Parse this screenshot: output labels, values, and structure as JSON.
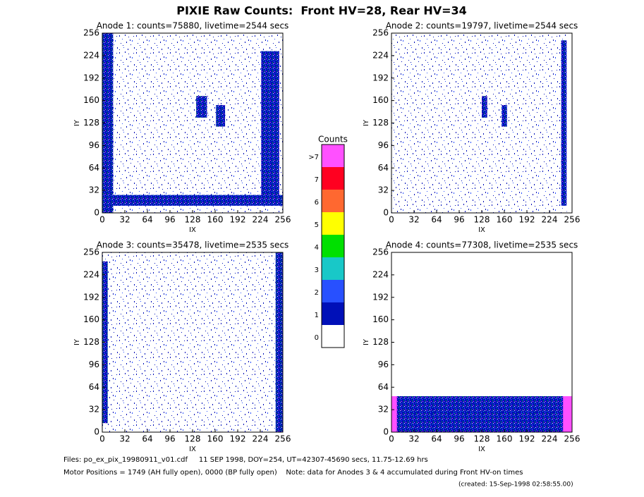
{
  "title": "PIXIE Raw Counts:  Front HV=28, Rear HV=34",
  "chart_data": [
    {
      "type": "heatmap",
      "title": "Anode 1: counts=75880, livetime=2544 secs",
      "xlabel": "IX",
      "ylabel": "IY",
      "xlim": [
        0,
        256
      ],
      "ylim": [
        0,
        256
      ],
      "xticks": [
        0,
        32,
        64,
        96,
        128,
        160,
        192,
        224,
        256
      ],
      "yticks": [
        0,
        32,
        64,
        96,
        128,
        160,
        192,
        224,
        256
      ]
    },
    {
      "type": "heatmap",
      "title": "Anode 2: counts=19797, livetime=2544 secs",
      "xlabel": "IX",
      "ylabel": "IY",
      "xlim": [
        0,
        256
      ],
      "ylim": [
        0,
        256
      ],
      "xticks": [
        0,
        32,
        64,
        96,
        128,
        160,
        192,
        224,
        256
      ],
      "yticks": [
        0,
        32,
        64,
        96,
        128,
        160,
        192,
        224,
        256
      ]
    },
    {
      "type": "heatmap",
      "title": "Anode 3: counts=35478, livetime=2535 secs",
      "xlabel": "IX",
      "ylabel": "IY",
      "xlim": [
        0,
        256
      ],
      "ylim": [
        0,
        256
      ],
      "xticks": [
        0,
        32,
        64,
        96,
        128,
        160,
        192,
        224,
        256
      ],
      "yticks": [
        0,
        32,
        64,
        96,
        128,
        160,
        192,
        224,
        256
      ]
    },
    {
      "type": "heatmap",
      "title": "Anode 4: counts=77308, livetime=2535 secs",
      "xlabel": "IX",
      "ylabel": "IY",
      "xlim": [
        0,
        256
      ],
      "ylim": [
        0,
        256
      ],
      "xticks": [
        0,
        32,
        64,
        96,
        128,
        160,
        192,
        224,
        256
      ],
      "yticks": [
        0,
        32,
        64,
        96,
        128,
        160,
        192,
        224,
        256
      ]
    }
  ],
  "colorbar": {
    "title": "Counts",
    "labels": [
      "0",
      "1",
      "2",
      "3",
      "4",
      "5",
      "6",
      "7",
      ">7"
    ],
    "colors": [
      "#ffffff",
      "#0010b8",
      "#2850ff",
      "#18c8c8",
      "#00e000",
      "#ffff00",
      "#ff6830",
      "#ff0020",
      "#ff50ff"
    ]
  },
  "footer": [
    "Files: po_ex_pix_19980911_v01.cdf     11 SEP 1998, DOY=254, UT=42307-45690 secs, 11.75-12.69 hrs",
    "Motor Positions = 1749 (AH fully open), 0000 (BP fully open)    Note: data for Anodes 3 & 4 accumulated during Front HV-on times",
    "(created: 15-Sep-1998 02:58:55.00)"
  ]
}
